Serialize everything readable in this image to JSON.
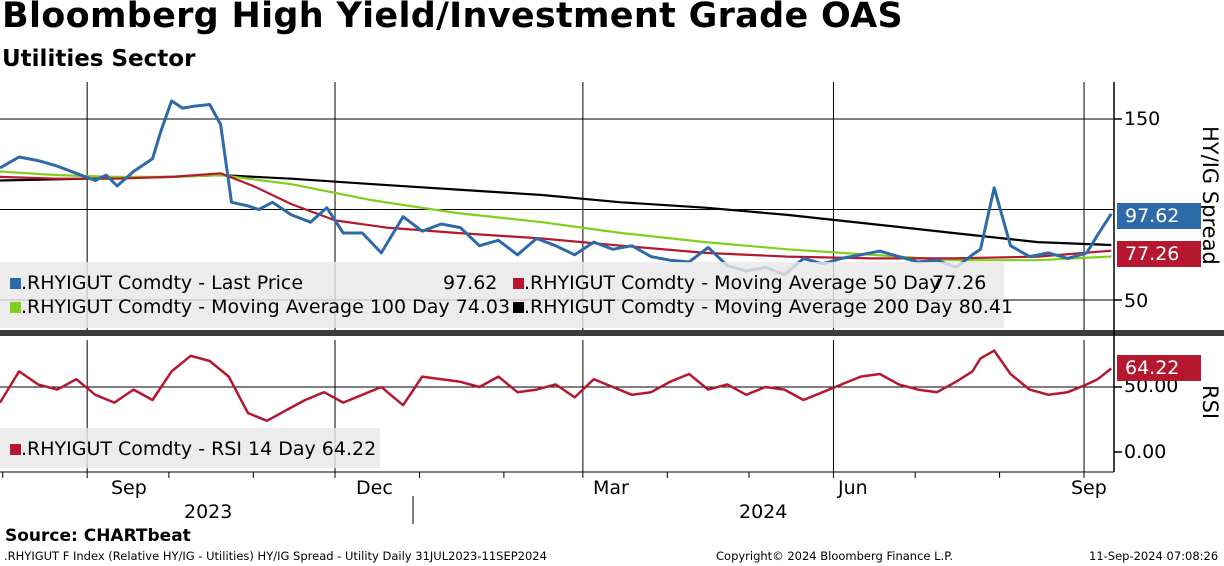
{
  "header": {
    "title": "Bloomberg High Yield/Investment Grade OAS",
    "subtitle": "Utilities Sector"
  },
  "colors": {
    "last_price": "#2e6aa8",
    "ma50": "#b5182e",
    "ma100": "#7fcf1c",
    "ma200": "#000000",
    "rsi": "#b5182e"
  },
  "chart_data": [
    {
      "type": "line",
      "panel": "upper",
      "ylabel": "HY/IG Spread",
      "yticks": [
        "150",
        "50"
      ],
      "ylim": [
        48,
        170
      ],
      "x_range": [
        "2023-07-31",
        "2024-09-11"
      ],
      "series": [
        {
          "name": ".RHYIGUT Comdty - Last Price",
          "last": "97.62",
          "x": [
            "2023-07-31",
            "2023-08-07",
            "2023-08-14",
            "2023-08-21",
            "2023-08-28",
            "2023-09-04",
            "2023-09-08",
            "2023-09-12",
            "2023-09-18",
            "2023-09-25",
            "2023-09-28",
            "2023-10-02",
            "2023-10-06",
            "2023-10-10",
            "2023-10-16",
            "2023-10-20",
            "2023-10-24",
            "2023-10-30",
            "2023-11-03",
            "2023-11-08",
            "2023-11-15",
            "2023-11-22",
            "2023-11-28",
            "2023-12-04",
            "2023-12-11",
            "2023-12-18",
            "2023-12-26",
            "2024-01-02",
            "2024-01-09",
            "2024-01-16",
            "2024-01-23",
            "2024-01-30",
            "2024-02-06",
            "2024-02-13",
            "2024-02-20",
            "2024-02-27",
            "2024-03-05",
            "2024-03-12",
            "2024-03-19",
            "2024-03-26",
            "2024-04-02",
            "2024-04-09",
            "2024-04-16",
            "2024-04-23",
            "2024-04-30",
            "2024-05-07",
            "2024-05-14",
            "2024-05-21",
            "2024-05-28",
            "2024-06-04",
            "2024-06-11",
            "2024-06-18",
            "2024-06-25",
            "2024-07-02",
            "2024-07-09",
            "2024-07-16",
            "2024-07-22",
            "2024-07-25",
            "2024-07-30",
            "2024-08-05",
            "2024-08-12",
            "2024-08-19",
            "2024-08-26",
            "2024-09-02",
            "2024-09-06",
            "2024-09-11"
          ],
          "values": [
            123,
            129,
            127,
            124,
            120,
            116,
            119,
            113,
            121,
            128,
            143,
            160,
            156,
            157,
            158,
            147,
            104,
            102,
            100,
            104,
            97,
            93,
            101,
            87,
            87,
            76,
            96,
            88,
            92,
            90,
            80,
            83,
            75,
            84,
            80,
            75,
            82,
            78,
            80,
            74,
            72,
            71,
            79,
            69,
            66,
            68,
            64,
            73,
            70,
            73,
            75,
            77,
            74,
            71,
            72,
            68,
            75,
            78,
            112,
            80,
            74,
            76,
            73,
            76,
            86,
            97.62
          ]
        },
        {
          "name": ".RHYIGUT Comdty - Moving Average 50 Day",
          "last": "77.26",
          "x": [
            "2023-07-31",
            "2023-08-21",
            "2023-09-11",
            "2023-10-02",
            "2023-10-20",
            "2023-11-01",
            "2023-11-15",
            "2023-12-01",
            "2023-12-20",
            "2024-01-15",
            "2024-02-15",
            "2024-03-15",
            "2024-04-15",
            "2024-05-15",
            "2024-06-15",
            "2024-07-15",
            "2024-08-15",
            "2024-09-11"
          ],
          "values": [
            118,
            117,
            117,
            118,
            120,
            113,
            103,
            94,
            90,
            87,
            84,
            80,
            76,
            74,
            73,
            73,
            74,
            77.26
          ]
        },
        {
          "name": ".RHYIGUT Comdty - Moving Average 100 Day",
          "last": "74.03",
          "x": [
            "2023-07-31",
            "2023-08-21",
            "2023-09-11",
            "2023-10-02",
            "2023-10-20",
            "2023-11-15",
            "2023-12-15",
            "2024-01-15",
            "2024-02-15",
            "2024-03-15",
            "2024-04-15",
            "2024-05-15",
            "2024-06-15",
            "2024-07-15",
            "2024-08-15",
            "2024-09-11"
          ],
          "values": [
            121,
            119,
            118,
            118,
            119,
            114,
            105,
            98,
            93,
            87,
            82,
            78,
            75,
            72,
            72,
            74.03
          ]
        },
        {
          "name": ".RHYIGUT Comdty - Moving Average 200 Day",
          "last": "80.41",
          "x": [
            "2023-07-31",
            "2023-09-01",
            "2023-10-01",
            "2023-10-20",
            "2023-11-15",
            "2023-12-15",
            "2024-01-15",
            "2024-02-15",
            "2024-03-15",
            "2024-04-15",
            "2024-05-15",
            "2024-06-15",
            "2024-07-15",
            "2024-08-15",
            "2024-09-11"
          ],
          "values": [
            116,
            117,
            118,
            119,
            117,
            114,
            111,
            108,
            104,
            101,
            97,
            92,
            87,
            82,
            80.41
          ]
        }
      ]
    },
    {
      "type": "line",
      "panel": "lower",
      "ylabel": "RSI",
      "yticks": [
        "50.00",
        "0.00"
      ],
      "ylim": [
        -5,
        110
      ],
      "series": [
        {
          "name": ".RHYIGUT Comdty - RSI 14 Day",
          "last": "64.22",
          "x": [
            "2023-07-31",
            "2023-08-07",
            "2023-08-14",
            "2023-08-21",
            "2023-08-28",
            "2023-09-04",
            "2023-09-11",
            "2023-09-18",
            "2023-09-25",
            "2023-10-02",
            "2023-10-09",
            "2023-10-16",
            "2023-10-23",
            "2023-10-30",
            "2023-11-06",
            "2023-11-13",
            "2023-11-20",
            "2023-11-27",
            "2023-12-04",
            "2023-12-11",
            "2023-12-18",
            "2023-12-26",
            "2024-01-02",
            "2024-01-09",
            "2024-01-16",
            "2024-01-23",
            "2024-01-30",
            "2024-02-06",
            "2024-02-13",
            "2024-02-20",
            "2024-02-27",
            "2024-03-05",
            "2024-03-12",
            "2024-03-19",
            "2024-03-26",
            "2024-04-02",
            "2024-04-09",
            "2024-04-16",
            "2024-04-23",
            "2024-04-30",
            "2024-05-07",
            "2024-05-14",
            "2024-05-21",
            "2024-05-28",
            "2024-06-04",
            "2024-06-11",
            "2024-06-18",
            "2024-06-25",
            "2024-07-02",
            "2024-07-09",
            "2024-07-16",
            "2024-07-22",
            "2024-07-25",
            "2024-07-30",
            "2024-08-05",
            "2024-08-12",
            "2024-08-19",
            "2024-08-26",
            "2024-09-02",
            "2024-09-06",
            "2024-09-11"
          ],
          "values": [
            38,
            62,
            52,
            48,
            56,
            44,
            38,
            48,
            40,
            62,
            74,
            70,
            58,
            30,
            24,
            32,
            40,
            46,
            38,
            44,
            50,
            36,
            58,
            56,
            54,
            50,
            58,
            46,
            48,
            52,
            42,
            56,
            50,
            44,
            46,
            54,
            60,
            48,
            52,
            44,
            50,
            48,
            40,
            46,
            52,
            58,
            60,
            52,
            48,
            46,
            54,
            62,
            72,
            78,
            60,
            48,
            44,
            46,
            52,
            56,
            64.22
          ]
        }
      ]
    }
  ],
  "legend": {
    "upper": [
      {
        "key": "last",
        "label": ".RHYIGUT Comdty - Last Price",
        "value": "97.62"
      },
      {
        "key": "ma50",
        "label": ".RHYIGUT Comdty - Moving Average 50 Day",
        "value": "77.26"
      },
      {
        "key": "ma100",
        "label": ".RHYIGUT Comdty - Moving Average 100 Day",
        "value": "74.03"
      },
      {
        "key": "ma200",
        "label": ".RHYIGUT Comdty - Moving Average 200 Day",
        "value": "80.41"
      }
    ],
    "lower": {
      "label": ".RHYIGUT Comdty - RSI 14 Day 64.22"
    }
  },
  "badges": {
    "last": "97.62",
    "ma50": "77.26",
    "rsi": "64.22"
  },
  "axes": {
    "upper_yticks": [
      "150",
      "50"
    ],
    "upper_ylabel": "HY/IG Spread",
    "lower_yticks": [
      "50.00",
      "0.00"
    ],
    "lower_ylabel": "RSI",
    "months": [
      "Sep",
      "Dec",
      "Mar",
      "Jun",
      "Sep"
    ],
    "years": [
      "2023",
      "2024"
    ]
  },
  "footer": {
    "source": "Source: CHARTbeat",
    "description": ".RHYIGUT F Index (Relative HY/IG - Utilities) HY/IG Spread - Utility  Daily 31JUL2023-11SEP2024",
    "copyright": "Copyright© 2024 Bloomberg Finance L.P.",
    "timestamp": "11-Sep-2024 07:08:26"
  }
}
